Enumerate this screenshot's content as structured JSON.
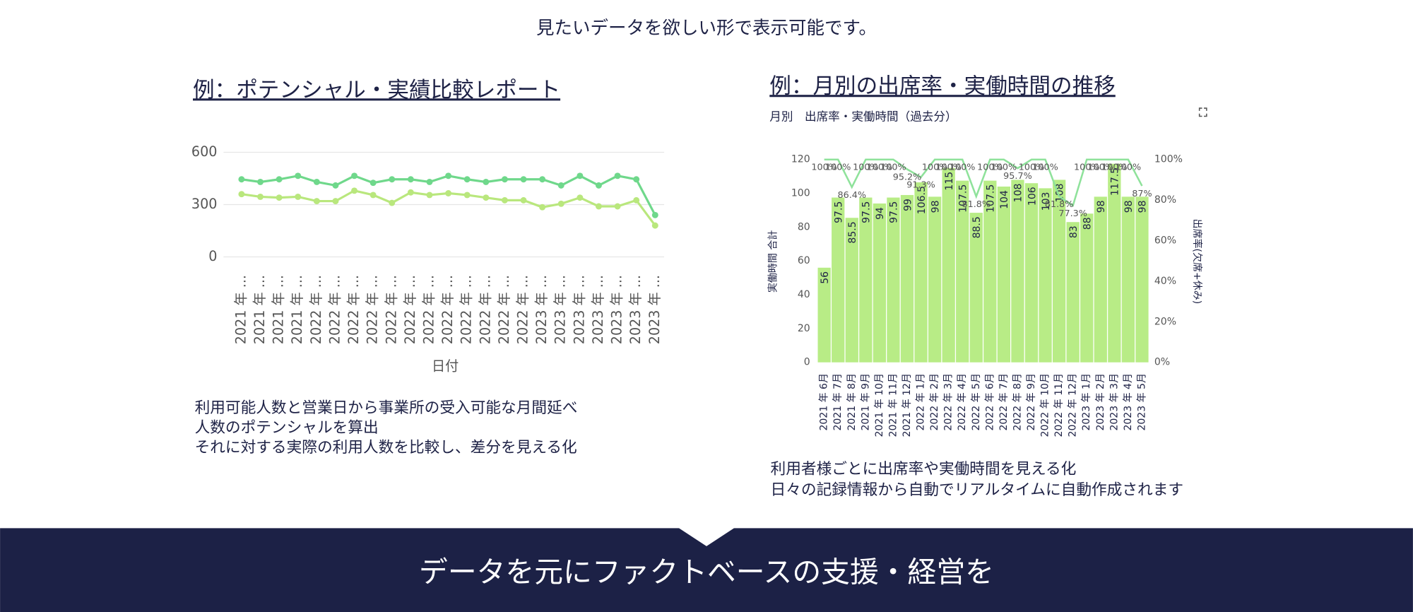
{
  "header": "見たいデータを欲しい形で表示可能です。",
  "banner": "データを元にファクトベースの支援・経営を",
  "chart_data": [
    {
      "type": "line",
      "heading": "例：ポテンシャル・実績比較レポート",
      "caption": [
        "利用可能人数と営業日から事業所の受入可能な月間延べ",
        "人数のポテンシャルを算出",
        "それに対する実際の利用人数を比較し、差分を見える化"
      ],
      "x_label": "日付",
      "categories": [
        "2021 年 ...",
        "2021 年 ...",
        "2021 年 ...",
        "2021 年 ...",
        "2022 年 ...",
        "2022 年 ...",
        "2022 年 ...",
        "2022 年 ...",
        "2022 年 ...",
        "2022 年 ...",
        "2022 年 ...",
        "2022 年 ...",
        "2022 年 ...",
        "2022 年 ...",
        "2022 年 ...",
        "2022 年 ...",
        "2023 年 ...",
        "2023 年 ...",
        "2023 年 ...",
        "2023 年 ...",
        "2023 年 ...",
        "2023 年 ...",
        "2023 年 ..."
      ],
      "series": [
        {
          "color": "#6fd88b",
          "values": [
            445,
            430,
            445,
            465,
            430,
            410,
            465,
            425,
            445,
            445,
            430,
            465,
            445,
            430,
            445,
            445,
            445,
            410,
            465,
            410,
            465,
            445,
            240
          ]
        },
        {
          "color": "#b9e77d",
          "values": [
            360,
            345,
            340,
            345,
            320,
            320,
            380,
            355,
            310,
            370,
            355,
            365,
            355,
            340,
            325,
            325,
            285,
            305,
            340,
            290,
            290,
            325,
            180
          ]
        }
      ],
      "ylim": [
        0,
        600
      ],
      "yticks": [
        0,
        300,
        600
      ],
      "grid": true
    },
    {
      "type": "bar-line",
      "heading": "例：月別の出席率・実働時間の推移",
      "title": "月別　出席率・実働時間（過去分）",
      "caption": [
        "利用者様ごとに出席率や実働時間を見える化",
        "日々の記録情報から自動でリアルタイムに自動作成されます"
      ],
      "y_label": "実働時間 合計",
      "y2_label": "出席率(欠席+休み)",
      "categories": [
        "2021 年 6月",
        "2021 年 7月",
        "2021 年 8月",
        "2021 年 9月",
        "2021 年 10月",
        "2021 年 11月",
        "2021 年 12月",
        "2022 年 1月",
        "2022 年 2月",
        "2022 年 3月",
        "2022 年 4月",
        "2022 年 5月",
        "2022 年 6月",
        "2022 年 7月",
        "2022 年 8月",
        "2022 年 9月",
        "2022 年 10月",
        "2022 年 11月",
        "2022 年 12月",
        "2023 年 1月",
        "2023 年 2月",
        "2023 年 3月",
        "2023 年 4月",
        "2023 年 5月"
      ],
      "series": [
        {
          "type": "bar",
          "color": "#b8ec86",
          "values": [
            56,
            97.5,
            85.5,
            97.5,
            94,
            97.5,
            99,
            106.5,
            98,
            115,
            107.5,
            88.5,
            107.5,
            104,
            108,
            106,
            103,
            108,
            83,
            88,
            98,
            117.5,
            98,
            98
          ]
        },
        {
          "type": "line",
          "axis": "y2",
          "color": "#8fe29b",
          "values": [
            100,
            100,
            86.4,
            100,
            100,
            100,
            95.2,
            91.3,
            100,
            100,
            100,
            81.8,
            100,
            100,
            95.7,
            100,
            100,
            81.8,
            77.3,
            100,
            100,
            100,
            100,
            87
          ],
          "value_labels": [
            "100%",
            "100%",
            "86.4%",
            "100%",
            "100%",
            "100%",
            "95.2%",
            "91.3%",
            "100%",
            "100%",
            "100%",
            "81.8%",
            "100%",
            "100%",
            "95.7%",
            "100%",
            "100%",
            "81.8%",
            "77.3%",
            "100%",
            "100%",
            "100%",
            "100%",
            "87%"
          ]
        }
      ],
      "ylim": [
        0,
        120
      ],
      "yticks": [
        0,
        20,
        40,
        60,
        80,
        100,
        120
      ],
      "y2lim": [
        0,
        100
      ],
      "y2ticks": [
        {
          "value": 0,
          "label": "0%"
        },
        {
          "value": 20,
          "label": "20%"
        },
        {
          "value": 40,
          "label": "40%"
        },
        {
          "value": 60,
          "label": "60%"
        },
        {
          "value": 80,
          "label": "80%"
        },
        {
          "value": 100,
          "label": "100%"
        }
      ]
    }
  ]
}
